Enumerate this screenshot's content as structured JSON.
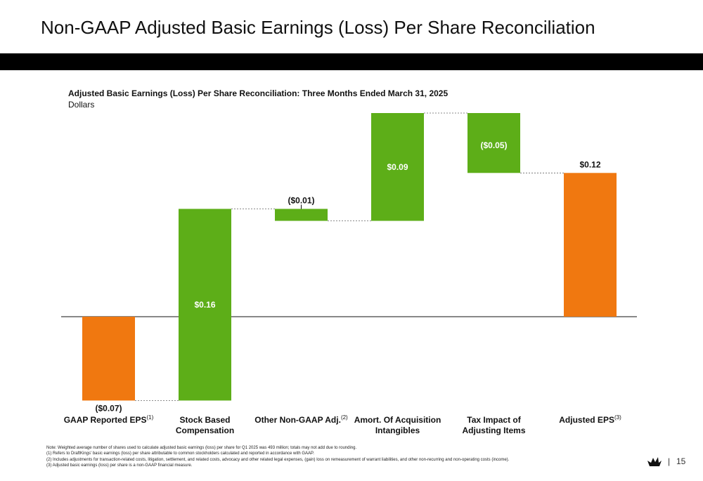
{
  "slide": {
    "title": "Non-GAAP Adjusted Basic Earnings (Loss) Per Share Reconciliation",
    "page_number": "15",
    "separator": "|"
  },
  "colors": {
    "total": "#F07810",
    "increase": "#5DAE18",
    "header_bar": "#000000"
  },
  "chart_data": {
    "type": "bar",
    "subtype": "waterfall",
    "title": "Adjusted Basic Earnings (Loss) Per Share Reconciliation: Three Months Ended March 31, 2025",
    "subtitle": "Dollars",
    "items": [
      {
        "category": "GAAP Reported EPS",
        "sup": "(1)",
        "value": -0.07,
        "label": "($0.07)",
        "kind": "total"
      },
      {
        "category": "Stock Based\nCompensation",
        "sup": "",
        "value": 0.16,
        "label": "$0.16",
        "kind": "delta"
      },
      {
        "category": "Other Non-GAAP Adj.",
        "sup": "(2)",
        "value": -0.01,
        "label": "($0.01)",
        "kind": "delta"
      },
      {
        "category": "Amort. Of Acquisition\nIntangibles",
        "sup": "",
        "value": 0.09,
        "label": "$0.09",
        "kind": "delta"
      },
      {
        "category": "Tax Impact of\nAdjusting Items",
        "sup": "",
        "value": -0.05,
        "label": "($0.05)",
        "kind": "delta"
      },
      {
        "category": "Adjusted EPS",
        "sup": "(3)",
        "value": 0.12,
        "label": "$0.12",
        "kind": "total"
      }
    ],
    "ylim": [
      -0.07,
      0.17
    ],
    "grid": false,
    "legend": "none"
  },
  "notes": [
    "Note: Weighted average number of shares used to calculate adjusted basic earnings (loss) per share for Q1 2025  was 493 million; totals may not add due to rounding.",
    "(1)     Refers to DraftKings' basic earnings (loss) per share attributable to common stockholders calculated and reported in accordance with GAAP.",
    "(2)     Includes adjustments for transaction-related costs, litigation, settlement, and related costs, advocacy and other related legal expenses, (gain) loss on remeasurement of warrant liabilities, and other non-recurring and non-operating costs (income).",
    "(3)     Adjusted basic earnings (loss) per share is a non-GAAP financial measure."
  ]
}
